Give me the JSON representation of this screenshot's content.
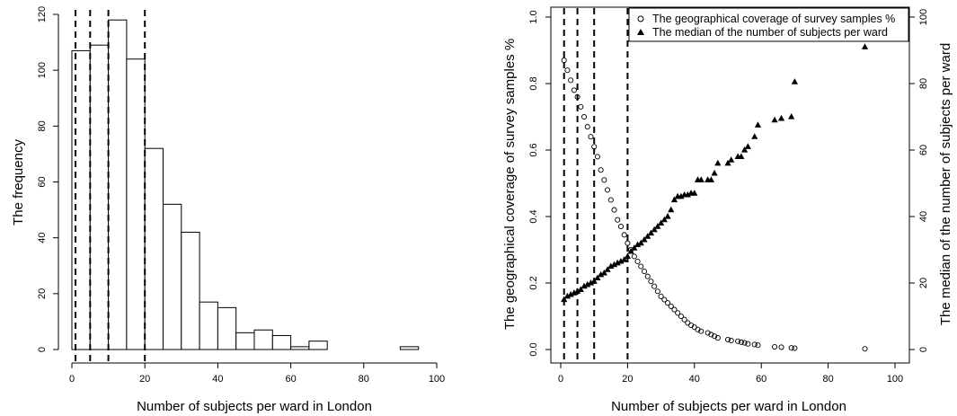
{
  "chart_data": [
    {
      "type": "bar",
      "subtype": "histogram",
      "title": "",
      "xlabel": "Number of subjects per ward in London",
      "ylabel": "The frequency",
      "xlim": [
        0,
        100
      ],
      "ylim": [
        0,
        120
      ],
      "x_ticks": [
        0,
        20,
        40,
        60,
        80,
        100
      ],
      "y_ticks": [
        0,
        20,
        40,
        60,
        80,
        100,
        120
      ],
      "bin_width": 5,
      "bin_starts": [
        0,
        5,
        10,
        15,
        20,
        25,
        30,
        35,
        40,
        45,
        50,
        55,
        60,
        65,
        70,
        75,
        80,
        85,
        90
      ],
      "values": [
        107,
        109,
        118,
        104,
        72,
        52,
        42,
        17,
        15,
        6,
        7,
        5,
        1,
        3,
        0,
        0,
        0,
        0,
        1
      ],
      "vlines": [
        1,
        5,
        10,
        20
      ],
      "grid": false
    },
    {
      "type": "scatter",
      "title": "",
      "xlabel": "Number of subjects per ward in London",
      "ylabel": "The geographical coverage of survey samples %",
      "ylabel_right": "The median of the number of subjects per ward",
      "xlim": [
        0,
        100
      ],
      "ylim": [
        0,
        1.0
      ],
      "ylim_right": [
        0,
        100
      ],
      "x_ticks": [
        0,
        20,
        40,
        60,
        80,
        100
      ],
      "y_ticks": [
        "0.0",
        "0.2",
        "0.4",
        "0.6",
        "0.8",
        "1.0"
      ],
      "y_ticks_right": [
        0,
        20,
        40,
        60,
        80,
        100
      ],
      "vlines": [
        1,
        5,
        10,
        20
      ],
      "legend_position": "top-right",
      "grid": false,
      "series": [
        {
          "name": "The geographical coverage of survey samples %",
          "marker": "open-circle",
          "axis": "left",
          "x": [
            1,
            2,
            3,
            4,
            5,
            6,
            7,
            8,
            9,
            10,
            11,
            12,
            13,
            14,
            15,
            16,
            17,
            18,
            19,
            20,
            21,
            22,
            23,
            24,
            25,
            26,
            27,
            28,
            29,
            30,
            31,
            32,
            33,
            34,
            35,
            36,
            37,
            38,
            39,
            40,
            41,
            42,
            44,
            45,
            46,
            47,
            50,
            51,
            53,
            54,
            55,
            56,
            58,
            59,
            64,
            66,
            69,
            70,
            91
          ],
          "y": [
            0.87,
            0.84,
            0.81,
            0.78,
            0.76,
            0.73,
            0.7,
            0.67,
            0.64,
            0.61,
            0.58,
            0.54,
            0.51,
            0.48,
            0.45,
            0.42,
            0.39,
            0.37,
            0.345,
            0.32,
            0.3,
            0.28,
            0.265,
            0.25,
            0.235,
            0.22,
            0.205,
            0.19,
            0.175,
            0.16,
            0.15,
            0.14,
            0.13,
            0.12,
            0.11,
            0.1,
            0.09,
            0.08,
            0.073,
            0.067,
            0.06,
            0.055,
            0.05,
            0.045,
            0.04,
            0.035,
            0.03,
            0.027,
            0.025,
            0.022,
            0.02,
            0.017,
            0.015,
            0.013,
            0.008,
            0.007,
            0.005,
            0.004,
            0.002
          ]
        },
        {
          "name": "The median of the number of subjects per ward",
          "marker": "filled-triangle",
          "axis": "right",
          "x": [
            1,
            2,
            3,
            4,
            5,
            6,
            7,
            8,
            9,
            10,
            11,
            12,
            13,
            14,
            15,
            16,
            17,
            18,
            19,
            20,
            21,
            22,
            23,
            24,
            25,
            26,
            27,
            28,
            29,
            30,
            31,
            32,
            33,
            34,
            35,
            36,
            37,
            38,
            39,
            40,
            41,
            42,
            44,
            45,
            46,
            47,
            50,
            51,
            53,
            54,
            55,
            56,
            58,
            59,
            64,
            66,
            69,
            70,
            91
          ],
          "y": [
            15,
            16,
            16.5,
            17,
            17.5,
            18,
            19,
            19.5,
            20,
            20.5,
            21.5,
            22.5,
            23,
            24,
            25,
            25.5,
            26,
            26.5,
            27,
            28,
            29.5,
            30.5,
            31.5,
            32,
            33,
            34,
            35,
            36,
            37,
            38,
            39,
            40,
            42,
            45,
            46,
            46,
            46.5,
            46.5,
            47,
            47,
            51,
            51,
            51,
            51,
            53,
            56,
            56,
            57,
            58,
            58,
            60,
            61,
            64,
            67.5,
            69,
            69.5,
            70,
            80.5,
            91
          ]
        }
      ]
    }
  ]
}
